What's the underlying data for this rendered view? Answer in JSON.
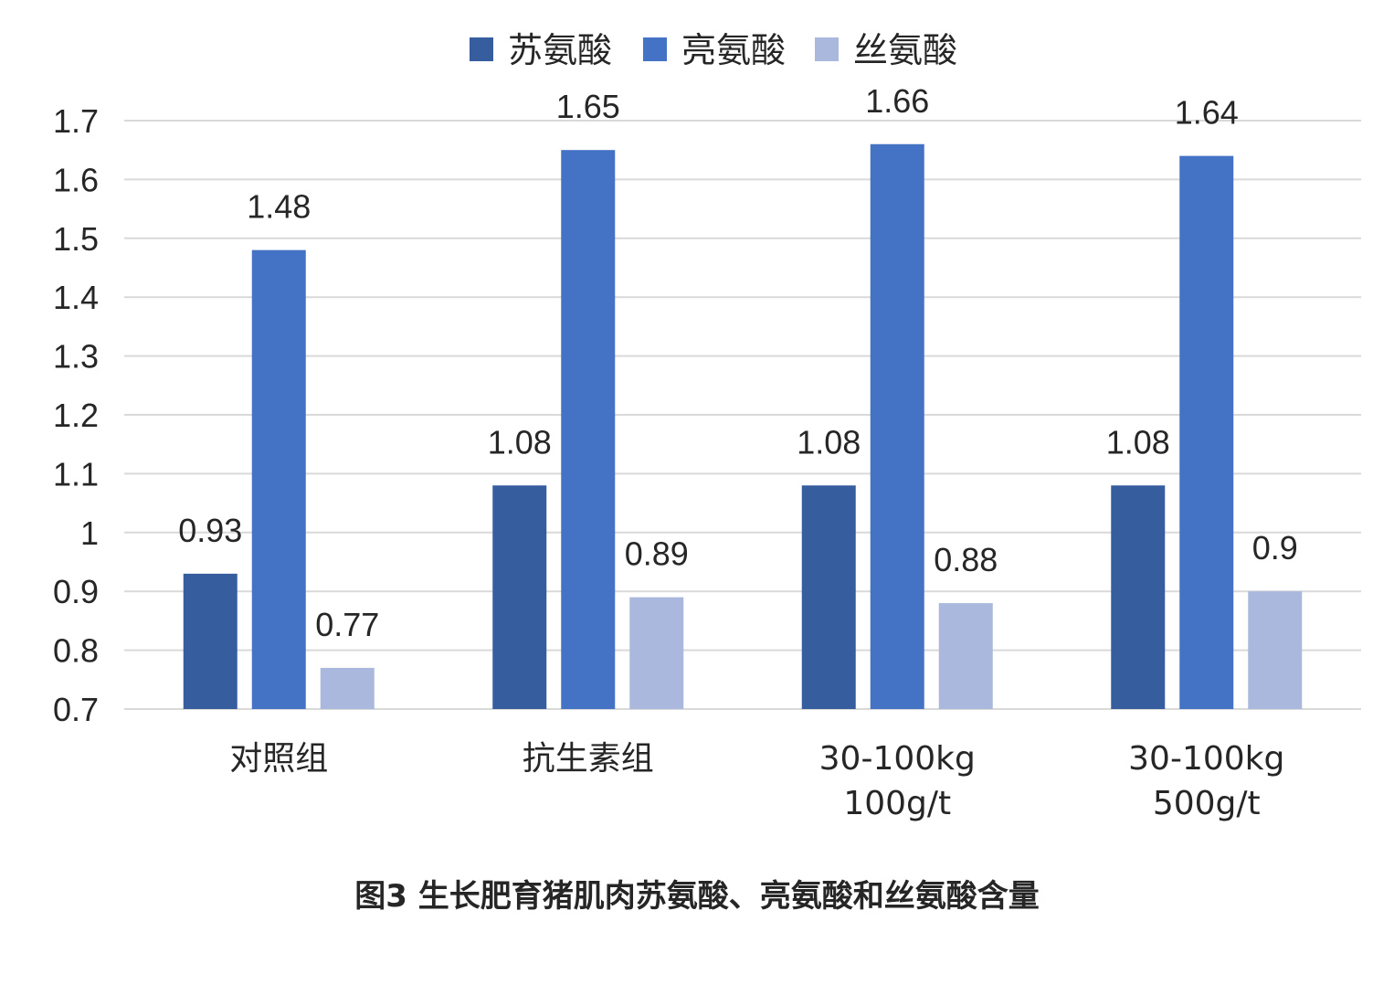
{
  "chart_data": {
    "type": "bar",
    "categories": [
      [
        "对照组"
      ],
      [
        "抗生素组"
      ],
      [
        "30-100kg",
        "100g/t"
      ],
      [
        "30-100kg",
        "500g/t"
      ]
    ],
    "series": [
      {
        "name": "苏氨酸",
        "color": "#365E9F",
        "values": [
          0.93,
          1.08,
          1.08,
          1.08
        ],
        "labels": [
          "0.93",
          "1.08",
          "1.08",
          "1.08"
        ]
      },
      {
        "name": "亮氨酸",
        "color": "#4472C4",
        "values": [
          1.48,
          1.65,
          1.66,
          1.64
        ],
        "labels": [
          "1.48",
          "1.65",
          "1.66",
          "1.64"
        ]
      },
      {
        "name": "丝氨酸",
        "color": "#A9B8DC",
        "values": [
          0.77,
          0.89,
          0.88,
          0.9
        ],
        "labels": [
          "0.77",
          "0.89",
          "0.88",
          "0.9"
        ]
      }
    ],
    "yticks": [
      "0.7",
      "0.8",
      "0.9",
      "1",
      "1.1",
      "1.2",
      "1.3",
      "1.4",
      "1.5",
      "1.6",
      "1.7"
    ],
    "ylim": [
      0.7,
      1.7
    ],
    "grid": true,
    "legend_position": "top-center",
    "caption": "图3  生长肥育猪肌肉苏氨酸、亮氨酸和丝氨酸含量"
  }
}
